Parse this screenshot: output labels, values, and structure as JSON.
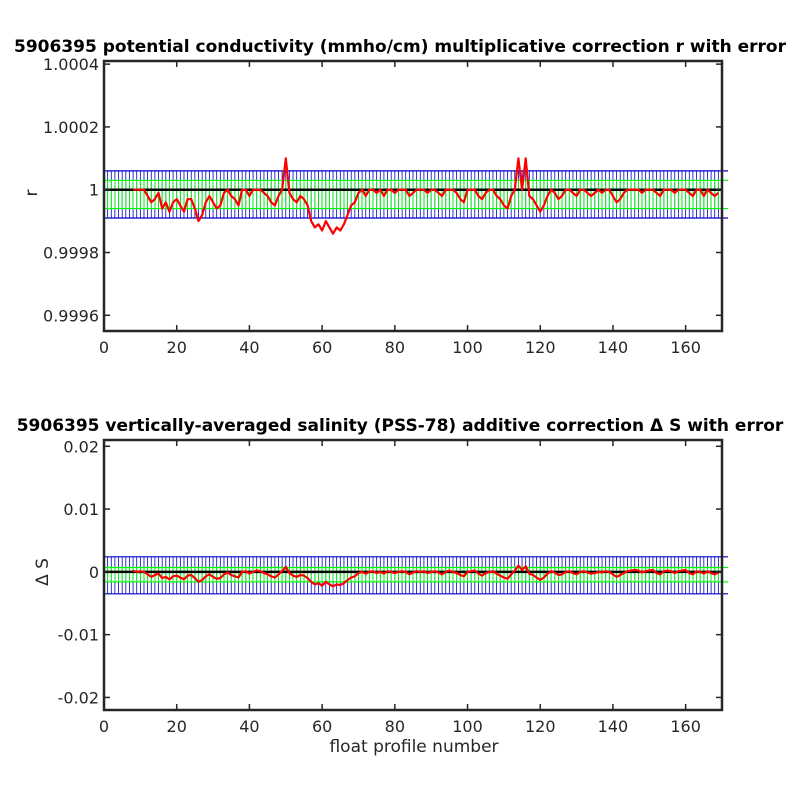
{
  "chart_data": [
    {
      "type": "line",
      "title": "5906395 potential conductivity (mmho/cm) multiplicative correction r with error",
      "xlabel": "",
      "ylabel": "r",
      "xlim": [
        0,
        170
      ],
      "ylim": [
        0.99955,
        1.00041
      ],
      "xticks": [
        0,
        20,
        40,
        60,
        80,
        100,
        120,
        140,
        160
      ],
      "yticks": [
        1.0004,
        1.0002,
        1,
        0.9998,
        0.9996
      ],
      "ytick_labels": [
        "1.0004",
        "1.0002",
        "1",
        "0.9998",
        "0.9996"
      ],
      "grid": false,
      "series": [
        {
          "role": "reference",
          "color": "#000000",
          "y": 1
        },
        {
          "role": "estimate",
          "color": "#ff0000",
          "x_start": 8,
          "x_end": 169,
          "y_values": [
            1.0,
            1.0,
            1.0,
            1.0,
            0.99998,
            0.99996,
            0.99997,
            0.99999,
            0.99994,
            0.99996,
            0.99993,
            0.99996,
            0.99997,
            0.99995,
            0.99993,
            0.99997,
            0.99997,
            0.99994,
            0.9999,
            0.99992,
            0.99996,
            0.99998,
            0.99996,
            0.99994,
            0.99995,
            0.99999,
            1.0,
            0.99998,
            0.99997,
            0.99995,
            1.0,
            1.0,
            0.99998,
            1.0,
            1.0,
            1.0,
            0.99999,
            0.99998,
            0.99996,
            0.99995,
            0.99998,
            1.0,
            1.0001,
            0.99999,
            0.99997,
            0.99996,
            0.99998,
            0.99997,
            0.99995,
            0.9999,
            0.99988,
            0.99989,
            0.99987,
            0.9999,
            0.99988,
            0.99986,
            0.99988,
            0.99987,
            0.99989,
            0.99992,
            0.99995,
            0.99996,
            0.99999,
            1.0,
            0.99998,
            1.0,
            1.0,
            0.99999,
            1.0,
            0.99998,
            1.0,
            1.0,
            0.99999,
            1.0,
            1.0,
            1.0,
            0.99998,
            0.99999,
            1.0,
            1.0,
            1.0,
            0.99999,
            1.0,
            1.0,
            0.99999,
            0.99998,
            1.0,
            1.0,
            1.0,
            0.99999,
            0.99997,
            0.99996,
            1.0,
            1.0,
            1.0,
            0.99998,
            0.99997,
            0.99999,
            1.0,
            1.0,
            0.99998,
            0.99997,
            0.99995,
            0.99994,
            0.99998,
            1.0,
            1.0001,
            1.0,
            1.0001,
            0.99998,
            0.99997,
            0.99995,
            0.99993,
            0.99995,
            0.99998,
            1.0,
            0.99999,
            0.99997,
            0.99998,
            1.0,
            1.0,
            0.99999,
            0.99998,
            1.0,
            1.0,
            0.99999,
            0.99998,
            0.99999,
            1.0,
            0.99999,
            1.0,
            1.0,
            0.99998,
            0.99996,
            0.99997,
            0.99999,
            1.0,
            1.0,
            1.0,
            1.0,
            0.99999,
            1.0,
            1.0,
            1.0,
            0.99999,
            0.99998,
            1.0,
            1.0,
            1.0,
            0.99999,
            1.0,
            1.0,
            1.0,
            0.99999,
            0.99998,
            1.0,
            1.0,
            0.99998,
            1.0,
            0.99999,
            0.99998,
            0.99999
          ]
        },
        {
          "role": "error_bars_green",
          "color": "#00ff00",
          "y_low": 0.99994,
          "y_high": 1.00003
        },
        {
          "role": "error_bars_blue",
          "color": "#0000c8",
          "y_low": 0.99991,
          "y_high": 1.00006
        }
      ]
    },
    {
      "type": "line",
      "title": "5906395 vertically-averaged salinity (PSS-78) additive correction Δ S with error",
      "xlabel": "float profile number",
      "ylabel": "Δ S",
      "xlim": [
        0,
        170
      ],
      "ylim": [
        -0.022,
        0.021
      ],
      "xticks": [
        0,
        20,
        40,
        60,
        80,
        100,
        120,
        140,
        160
      ],
      "yticks": [
        0.02,
        0.01,
        0,
        -0.01,
        -0.02
      ],
      "ytick_labels": [
        "0.02",
        "0.01",
        "0",
        "-0.01",
        "-0.02"
      ],
      "grid": false,
      "series": [
        {
          "role": "reference",
          "color": "#000000",
          "y": 0
        },
        {
          "role": "estimate",
          "color": "#ff0000",
          "x_start": 8,
          "x_end": 169,
          "y_values": [
            0.0002,
            0.0,
            0.0001,
            0.0,
            -0.0004,
            -0.0008,
            -0.0005,
            -0.0003,
            -0.001,
            -0.0008,
            -0.0012,
            -0.0007,
            -0.0006,
            -0.0009,
            -0.0012,
            -0.0006,
            -0.0005,
            -0.001,
            -0.0016,
            -0.0013,
            -0.0007,
            -0.0004,
            -0.0008,
            -0.0011,
            -0.001,
            -0.0004,
            -0.0001,
            -0.0005,
            -0.0007,
            -0.0009,
            0.0,
            0.0001,
            -0.0003,
            0.0,
            0.0002,
            0.0001,
            -0.0002,
            -0.0004,
            -0.0007,
            -0.0009,
            -0.0004,
            0.0001,
            0.0008,
            -0.0002,
            -0.0006,
            -0.0008,
            -0.0005,
            -0.0006,
            -0.001,
            -0.0016,
            -0.002,
            -0.0018,
            -0.0022,
            -0.0016,
            -0.002,
            -0.0023,
            -0.002,
            -0.0021,
            -0.0018,
            -0.0013,
            -0.0009,
            -0.0007,
            -0.0002,
            0.0,
            -0.0003,
            0.0,
            0.0001,
            -0.0002,
            0.0,
            -0.0003,
            0.0001,
            0.0,
            -0.0002,
            0.0,
            0.0001,
            0.0,
            -0.0004,
            -0.0001,
            0.0001,
            0.0,
            0.0001,
            -0.0002,
            0.0,
            0.0001,
            -0.0001,
            -0.0004,
            0.0,
            0.0002,
            0.0,
            -0.0002,
            -0.0005,
            -0.0007,
            0.0,
            0.0001,
            0.0002,
            -0.0003,
            -0.0006,
            -0.0002,
            0.0,
            0.0001,
            -0.0003,
            -0.0006,
            -0.0009,
            -0.0011,
            -0.0004,
            0.0002,
            0.001,
            0.0003,
            0.0009,
            -0.0003,
            -0.0005,
            -0.0009,
            -0.0013,
            -0.0009,
            -0.0003,
            0.0001,
            -0.0001,
            -0.0005,
            -0.0004,
            0.0,
            0.0001,
            -0.0002,
            -0.0004,
            0.0,
            0.0001,
            -0.0001,
            -0.0003,
            -0.0002,
            0.0,
            -0.0001,
            0.0001,
            0.0,
            -0.0004,
            -0.0008,
            -0.0005,
            -0.0002,
            0.0001,
            0.0002,
            0.0003,
            0.0002,
            -0.0001,
            0.0001,
            0.0002,
            0.0003,
            -0.0002,
            -0.0004,
            0.0001,
            0.0002,
            0.0001,
            -0.0002,
            0.0001,
            0.0002,
            0.0003,
            -0.0002,
            -0.0004,
            0.0001,
            0.0,
            -0.0003,
            0.0001,
            -0.0002,
            -0.0004,
            -0.0001
          ]
        },
        {
          "role": "error_bars_green",
          "color": "#00ff00",
          "y_low": -0.0016,
          "y_high": 0.0007
        },
        {
          "role": "error_bars_blue",
          "color": "#0000c8",
          "y_low": -0.0035,
          "y_high": 0.0024
        }
      ]
    }
  ]
}
